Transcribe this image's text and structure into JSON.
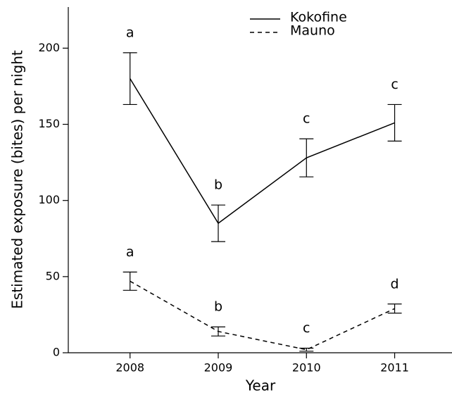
{
  "chart_data": {
    "type": "line",
    "x_label": "Year",
    "y_label": "Estimated exposure (bites) per night",
    "x": [
      2008,
      2009,
      2010,
      2011
    ],
    "xlim": [
      2007.3,
      2011.65
    ],
    "xticks": [
      2008,
      2009,
      2010,
      2011
    ],
    "ylim": [
      0,
      227
    ],
    "yticks": [
      0,
      50,
      100,
      150,
      200
    ],
    "legend": "top",
    "series": [
      {
        "name": "Kokofine",
        "color": "#000000",
        "linestyle": "solid",
        "values": [
          180,
          85,
          128,
          151
        ],
        "errors": [
          17,
          12,
          12.5,
          12
        ],
        "letters": [
          "a",
          "b",
          "c",
          "c"
        ]
      },
      {
        "name": "Mauno",
        "color": "#000000",
        "linestyle": "dashed",
        "values": [
          47,
          14,
          2,
          29
        ],
        "errors": [
          6,
          3,
          1,
          3
        ],
        "letters": [
          "a",
          "b",
          "c",
          "d"
        ]
      }
    ]
  }
}
